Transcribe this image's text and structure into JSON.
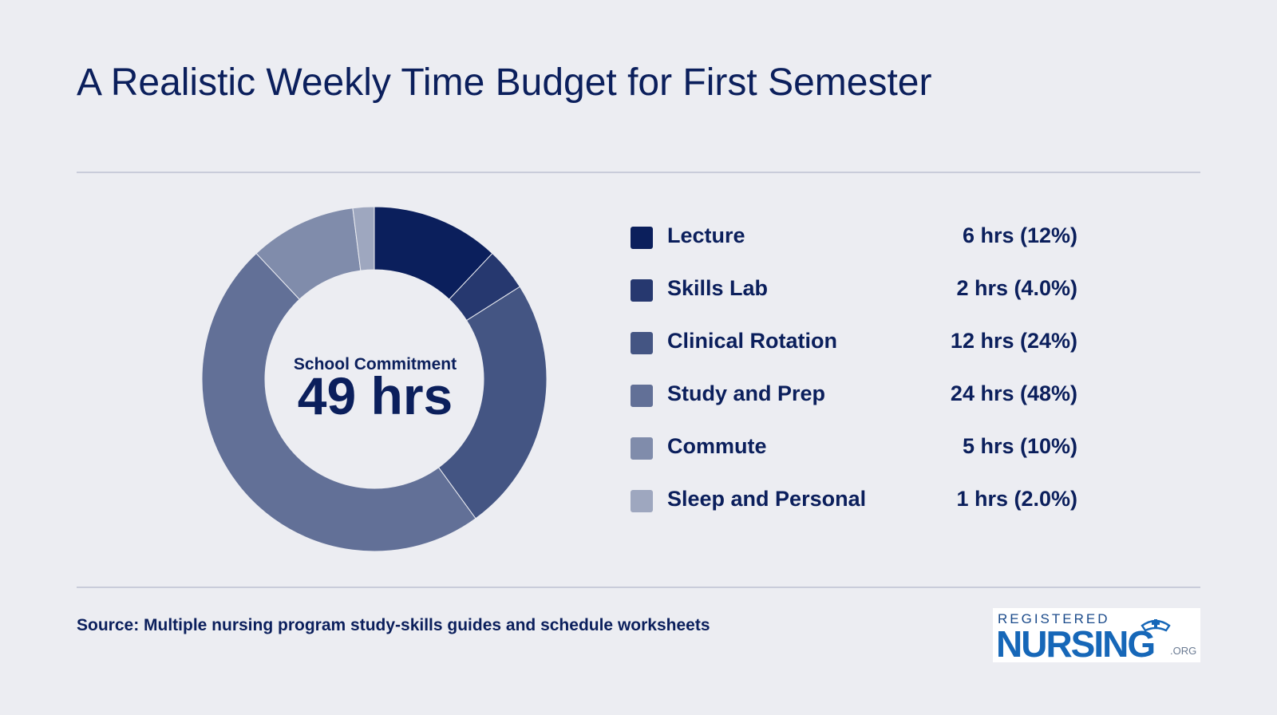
{
  "title": "A Realistic Weekly Time Budget for First Semester",
  "center": {
    "label": "School Commitment",
    "value": "49 hrs"
  },
  "source": "Source: Multiple nursing program study-skills guides and schedule worksheets",
  "logo": {
    "top_text": "REGISTERED",
    "main_text": "NURSING",
    "suffix": ".ORG"
  },
  "colors": {
    "background": "#ECEDF2",
    "text": "#0B1F5C",
    "divider": "#C9CCDA"
  },
  "chart_data": {
    "type": "pie",
    "title": "A Realistic Weekly Time Budget for First Semester",
    "donut": true,
    "legend_position": "right",
    "categories": [
      "Lecture",
      "Skills Lab",
      "Clinical Rotation",
      "Study and Prep",
      "Commute",
      "Sleep and Personal"
    ],
    "values": [
      6,
      2,
      12,
      24,
      5,
      1
    ],
    "value_labels": [
      "6 hrs (12%)",
      "2 hrs (4.0%)",
      "12 hrs (24%)",
      "24 hrs (48%)",
      "5 hrs (10%)",
      "1 hrs (2.0%)"
    ],
    "colors": [
      "#0B1F5C",
      "#26386F",
      "#445583",
      "#627097",
      "#808CAB",
      "#9EA7BF"
    ]
  }
}
